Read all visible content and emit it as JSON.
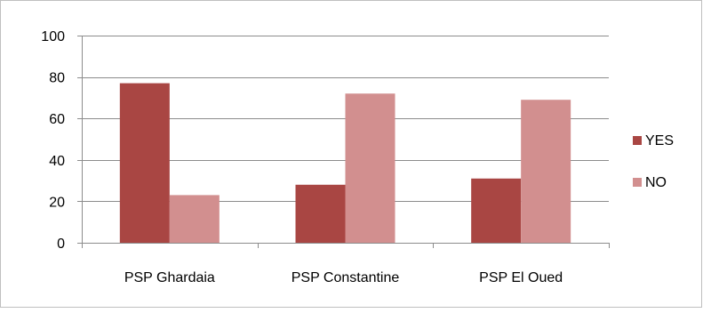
{
  "chart_data": {
    "type": "bar",
    "title": "",
    "xlabel": "",
    "ylabel": "",
    "categories": [
      "PSP Ghardaia",
      "PSP Constantine",
      "PSP El Oued"
    ],
    "series": [
      {
        "name": "YES",
        "values": [
          77,
          28,
          31
        ],
        "color": "#A94643"
      },
      {
        "name": "NO",
        "values": [
          23,
          72,
          69
        ],
        "color": "#D28F8F"
      }
    ],
    "ylim": [
      0,
      100
    ],
    "yticks": [
      "0",
      "20",
      "40",
      "60",
      "80",
      "100"
    ],
    "grid": true,
    "legend": "right"
  }
}
